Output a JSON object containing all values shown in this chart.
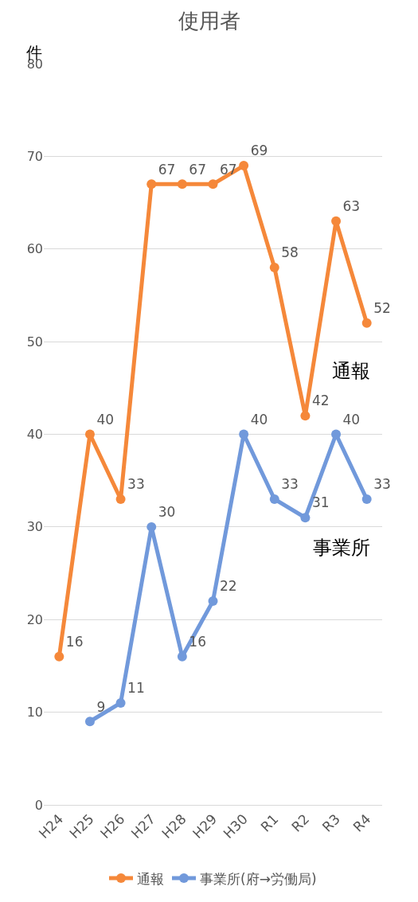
{
  "chart_data": {
    "type": "line",
    "title": "使用者",
    "ylabel": "件",
    "categories": [
      "H24",
      "H25",
      "H26",
      "H27",
      "H28",
      "H29",
      "H30",
      "R1",
      "R2",
      "R3",
      "R4"
    ],
    "series": [
      {
        "name": "通報",
        "color": "#f5883a",
        "values": [
          16,
          40,
          33,
          67,
          67,
          67,
          69,
          58,
          42,
          63,
          52
        ]
      },
      {
        "name": "事業所(府→労働局)",
        "color": "#7199db",
        "values": [
          null,
          9,
          11,
          30,
          16,
          22,
          40,
          33,
          31,
          40,
          33
        ]
      }
    ],
    "ylim": [
      0,
      80
    ],
    "yticks": [
      0,
      10,
      20,
      30,
      40,
      50,
      60,
      70,
      80
    ],
    "annotations": [
      "通報",
      "事業所"
    ],
    "data_labels": true,
    "grid": "y",
    "legend": "bottom",
    "marker": "circle",
    "line_style": "solid"
  }
}
